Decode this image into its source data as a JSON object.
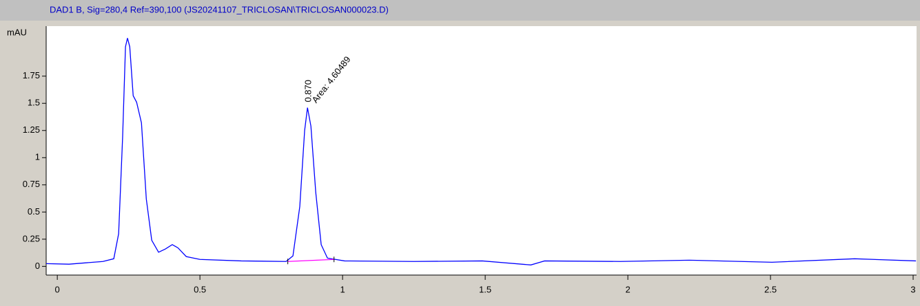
{
  "chart_data": {
    "type": "line",
    "title": "DAD1 B, Sig=280,4 Ref=390,100 (JS20241107_TRICLOSAN\\TRICLOSAN000023.D)",
    "y_label": "mAU",
    "color": "#0000ff",
    "x": [
      -0.039,
      0.041,
      0.16,
      0.198,
      0.215,
      0.229,
      0.239,
      0.246,
      0.254,
      0.266,
      0.278,
      0.295,
      0.312,
      0.331,
      0.355,
      0.379,
      0.403,
      0.423,
      0.452,
      0.5,
      0.645,
      0.802,
      0.826,
      0.85,
      0.867,
      0.877,
      0.889,
      0.906,
      0.925,
      0.947,
      1.007,
      1.249,
      1.49,
      1.66,
      1.708,
      1.973,
      2.215,
      2.505,
      2.795,
      3.01
    ],
    "values": [
      0.025,
      0.02,
      0.045,
      0.07,
      0.3,
      1.19,
      2.02,
      2.1,
      2.02,
      1.57,
      1.51,
      1.32,
      0.62,
      0.24,
      0.13,
      0.16,
      0.2,
      0.17,
      0.09,
      0.064,
      0.05,
      0.045,
      0.096,
      0.55,
      1.25,
      1.46,
      1.29,
      0.68,
      0.2,
      0.076,
      0.05,
      0.045,
      0.05,
      0.013,
      0.05,
      0.045,
      0.057,
      0.038,
      0.07,
      0.05
    ],
    "baseline": {
      "x": [
        0.808,
        0.97
      ],
      "values": [
        0.045,
        0.064
      ],
      "color": "#ff00ff"
    },
    "annotations": {
      "peak_label": "0.870",
      "area_label": "Area: 4.60489"
    },
    "xlim": [
      -0.039,
      3.012
    ],
    "ylim": [
      -0.08,
      2.21
    ],
    "xticks": [
      0,
      0.5,
      1,
      1.5,
      2,
      2.5,
      3
    ],
    "yticks": [
      0,
      0.25,
      0.5,
      0.75,
      1,
      1.25,
      1.5,
      1.75
    ]
  }
}
